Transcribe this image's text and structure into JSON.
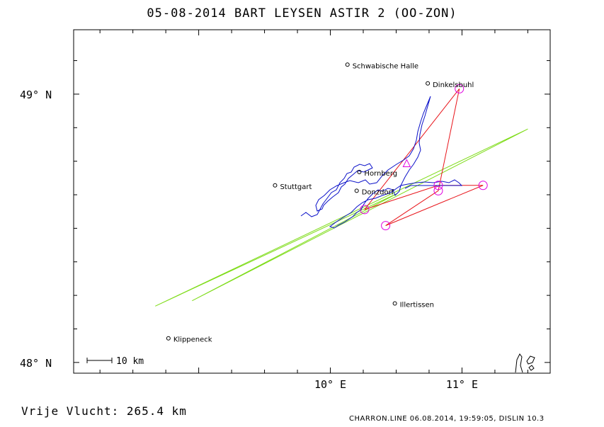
{
  "title": "05-08-2014    BART LEYSEN    ASTIR 2 (OO-ZON)",
  "footer_left": "Vrije Vlucht:  265.4 km",
  "footer_right": "CHARRON.LINE 06.08.2014, 19:59:05, DISLIN 10.3",
  "map": {
    "x_range_lon": [
      8.05,
      11.67
    ],
    "y_range_lat": [
      47.96,
      49.24
    ],
    "axis_labels": {
      "lat": [
        {
          "value": 49.0,
          "text": "49° N"
        },
        {
          "value": 48.0,
          "text": "48° N"
        }
      ],
      "lon": [
        {
          "value": 10.0,
          "text": "10° E"
        },
        {
          "value": 11.0,
          "text": "11° E"
        }
      ]
    },
    "scale_bar": "10 km",
    "towns": [
      {
        "name": "Schwabische Halle",
        "lon": 10.13,
        "lat": 49.11
      },
      {
        "name": "Dinkelsbuhl",
        "lon": 10.74,
        "lat": 49.04
      },
      {
        "name": "Hornberg",
        "lon": 10.22,
        "lat": 48.71
      },
      {
        "name": "Stuttgart",
        "lon": 9.58,
        "lat": 48.66
      },
      {
        "name": "Donzdorf",
        "lon": 10.2,
        "lat": 48.64
      },
      {
        "name": "Illertissen",
        "lon": 10.49,
        "lat": 48.22
      },
      {
        "name": "Klippeneck",
        "lon": 8.77,
        "lat": 48.09
      }
    ],
    "task_turnpoints": [
      {
        "lon": 10.26,
        "lat": 48.57
      },
      {
        "lon": 10.98,
        "lat": 49.02
      },
      {
        "lon": 10.82,
        "lat": 48.64
      },
      {
        "lon": 10.42,
        "lat": 48.51
      },
      {
        "lon": 11.16,
        "lat": 48.66
      },
      {
        "lon": 10.82,
        "lat": 48.66
      },
      {
        "lon": 10.26,
        "lat": 48.57
      }
    ],
    "start_marker": {
      "lon": 10.58,
      "lat": 48.74
    },
    "green_lines": [
      {
        "lon": 8.67,
        "lat": 48.21
      },
      {
        "lon": 11.5,
        "lat": 48.87
      },
      {
        "lon": 8.95,
        "lat": 48.23
      },
      {
        "lon": 10.51,
        "lat": 48.63
      },
      {
        "lon": 8.67,
        "lat": 48.21
      }
    ],
    "colors": {
      "task": "#e8141a",
      "track": "#0b11c9",
      "sector": "#e000e0",
      "green": "#7fdc1a"
    }
  }
}
